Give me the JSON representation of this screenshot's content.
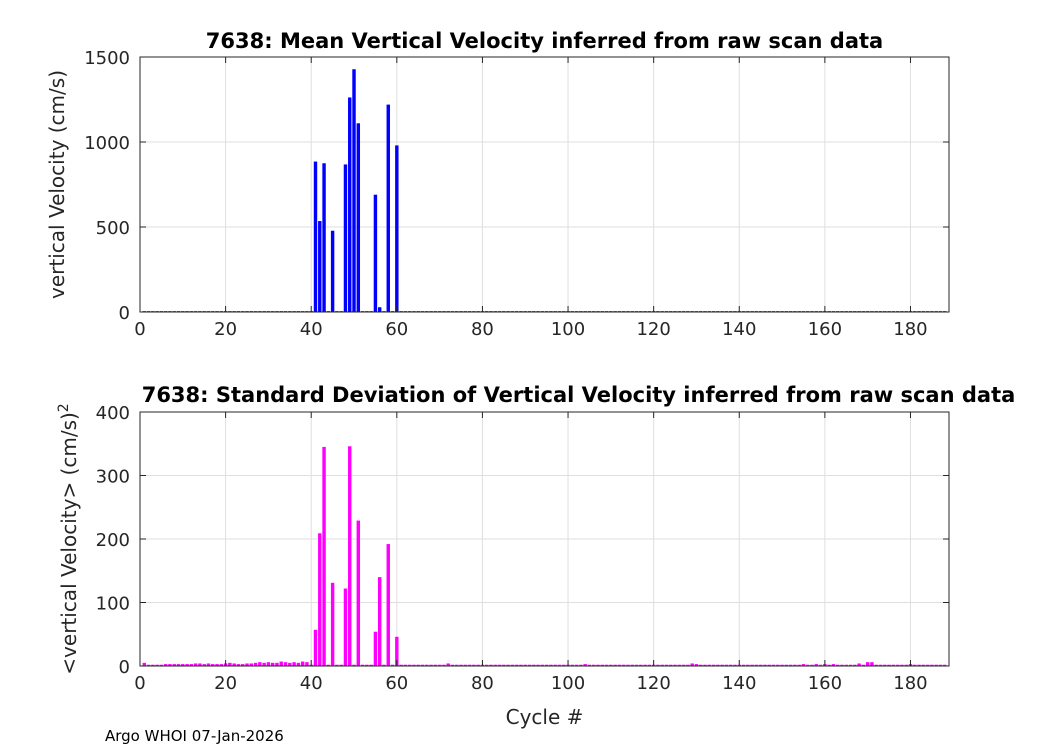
{
  "footer": "Argo WHOI 07-Jan-2026",
  "chart_data": [
    {
      "type": "bar",
      "title": "7638: Mean Vertical Velocity inferred from raw scan data",
      "xlabel": "",
      "ylabel": "vertical Velocity (cm/s)",
      "xlim": [
        0,
        189
      ],
      "ylim": [
        0,
        1500
      ],
      "xticks": [
        0,
        20,
        40,
        60,
        80,
        100,
        120,
        140,
        160,
        180
      ],
      "yticks": [
        0,
        500,
        1000,
        1500
      ],
      "grid": true,
      "color": "#0000ff",
      "x": [
        41,
        42,
        43,
        45,
        48,
        49,
        50,
        51,
        55,
        56,
        58,
        60
      ],
      "values": [
        885,
        535,
        875,
        478,
        868,
        1262,
        1428,
        1110,
        690,
        28,
        1220,
        980
      ],
      "baseline_value": 5
    },
    {
      "type": "bar",
      "title": "7638: Standard Deviation of Vertical Velocity inferred from raw scan data",
      "xlabel": "Cycle #",
      "ylabel": "<vertical Velocity> (cm/s)",
      "ylabel_superscript": "2",
      "xlim": [
        0,
        189
      ],
      "ylim": [
        0,
        400
      ],
      "xticks": [
        0,
        20,
        40,
        60,
        80,
        100,
        120,
        140,
        160,
        180
      ],
      "yticks": [
        0,
        100,
        200,
        300,
        400
      ],
      "grid": true,
      "color": "#ff00ff",
      "x": [
        1,
        6,
        7,
        8,
        9,
        10,
        11,
        12,
        13,
        14,
        15,
        16,
        17,
        18,
        19,
        20,
        21,
        22,
        23,
        24,
        25,
        26,
        27,
        28,
        29,
        30,
        31,
        32,
        33,
        34,
        35,
        36,
        37,
        38,
        39,
        41,
        42,
        43,
        45,
        48,
        49,
        51,
        55,
        56,
        58,
        60,
        72,
        104,
        129,
        130,
        155,
        158,
        160,
        162,
        168,
        170,
        171,
        180
      ],
      "values": [
        5,
        3,
        3,
        3,
        3,
        3,
        3,
        3,
        4,
        4,
        3,
        4,
        3,
        3,
        3,
        4,
        5,
        4,
        3,
        3,
        4,
        4,
        5,
        6,
        5,
        6,
        5,
        5,
        7,
        6,
        5,
        6,
        5,
        7,
        6,
        57,
        209,
        345,
        131,
        122,
        346,
        229,
        54,
        140,
        192,
        46,
        4,
        3,
        4,
        3,
        3,
        3,
        3,
        3,
        4,
        6,
        6,
        3
      ],
      "baseline_value": 2
    }
  ]
}
